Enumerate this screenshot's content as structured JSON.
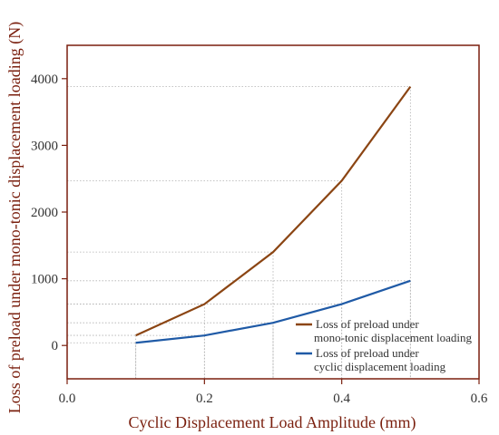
{
  "chart_data": {
    "type": "line",
    "xlabel": "Cyclic Displacement Load Amplitude (mm)",
    "ylabel": "Loss of preload under mono-tonic displacement loading (N)",
    "xlim": [
      0.0,
      0.6
    ],
    "ylim": [
      -500,
      4500
    ],
    "xticks": [
      "0.0",
      "0.2",
      "0.4",
      "0.6"
    ],
    "yticks": [
      "0",
      "1000",
      "2000",
      "3000",
      "4000"
    ],
    "grid": "dotted drop lines to axes at each data point",
    "legend_position": "bottom-right",
    "series": [
      {
        "name": "Loss of preload under mono-tonic displacement loading",
        "legend_lines": [
          "Loss of preload under",
          "mono-tonic displacement loading"
        ],
        "color": "#8b4513",
        "x": [
          0.1,
          0.2,
          0.3,
          0.4,
          0.5
        ],
        "y": [
          150,
          620,
          1400,
          2470,
          3880
        ]
      },
      {
        "name": "Loss of preload under cyclic displacement loading",
        "legend_lines": [
          "Loss of preload under",
          "cyclic displacement loading"
        ],
        "color": "#1f5aa6",
        "x": [
          0.1,
          0.2,
          0.3,
          0.4,
          0.5
        ],
        "y": [
          40,
          150,
          340,
          620,
          970
        ]
      }
    ],
    "frame_color": "#7a1f0e"
  }
}
